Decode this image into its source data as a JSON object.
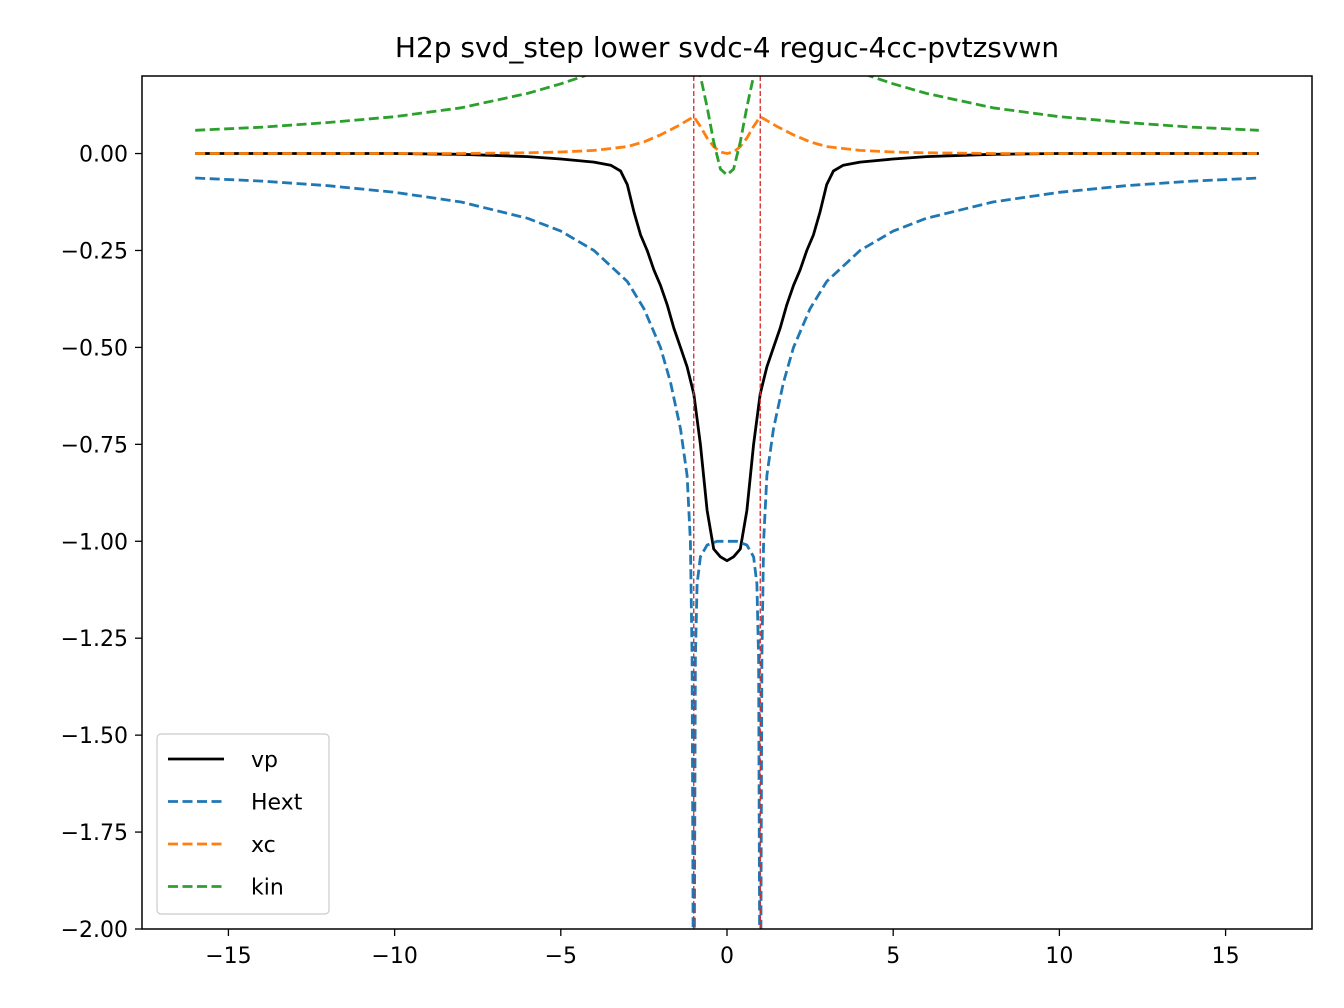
{
  "chart_data": {
    "type": "line",
    "title": "H2p svd_step lower svdc-4 reguc-4cc-pvtzsvwn",
    "xlabel": "",
    "ylabel": "",
    "xlim": [
      -17.6,
      17.6
    ],
    "ylim": [
      -2.0,
      0.2
    ],
    "x_ticks": [
      -15,
      -10,
      -5,
      0,
      5,
      10,
      15
    ],
    "x_tick_labels": [
      "−15",
      "−10",
      "−5",
      "0",
      "5",
      "10",
      "15"
    ],
    "y_ticks": [
      0.0,
      -0.25,
      -0.5,
      -0.75,
      -1.0,
      -1.25,
      -1.5,
      -1.75,
      -2.0
    ],
    "y_tick_labels": [
      "0.00",
      "−0.25",
      "−0.50",
      "−0.75",
      "−1.00",
      "−1.25",
      "−1.50",
      "−1.75",
      "−2.00"
    ],
    "grid": false,
    "legend_position": "lower-left",
    "vertical_lines": [
      {
        "x": -1.0,
        "color": "#d62728",
        "style": "dashed"
      },
      {
        "x": 1.0,
        "color": "#d62728",
        "style": "dashed"
      }
    ],
    "series": [
      {
        "name": "vp",
        "color": "#000000",
        "style": "solid",
        "x": [
          -16,
          -10,
          -8,
          -6,
          -5,
          -4,
          -3.5,
          -3.2,
          -3.0,
          -2.8,
          -2.6,
          -2.4,
          -2.2,
          -2.0,
          -1.8,
          -1.6,
          -1.4,
          -1.2,
          -1.0,
          -0.8,
          -0.6,
          -0.4,
          -0.2,
          0,
          0.2,
          0.4,
          0.6,
          0.8,
          1.0,
          1.2,
          1.4,
          1.6,
          1.8,
          2.0,
          2.2,
          2.4,
          2.6,
          2.8,
          3.0,
          3.2,
          3.5,
          4,
          5,
          6,
          8,
          10,
          16
        ],
        "values": [
          0.0,
          0.0,
          -0.002,
          -0.008,
          -0.014,
          -0.022,
          -0.03,
          -0.045,
          -0.08,
          -0.15,
          -0.21,
          -0.25,
          -0.3,
          -0.34,
          -0.39,
          -0.45,
          -0.5,
          -0.55,
          -0.62,
          -0.75,
          -0.92,
          -1.02,
          -1.04,
          -1.05,
          -1.04,
          -1.02,
          -0.92,
          -0.75,
          -0.62,
          -0.55,
          -0.5,
          -0.45,
          -0.39,
          -0.34,
          -0.3,
          -0.25,
          -0.21,
          -0.15,
          -0.08,
          -0.045,
          -0.03,
          -0.022,
          -0.014,
          -0.008,
          -0.002,
          0.0,
          0.0
        ]
      },
      {
        "name": "Hext",
        "color": "#1f77b4",
        "style": "dashed",
        "x": [
          -16,
          -14,
          -12,
          -10,
          -8,
          -6,
          -5,
          -4,
          -3,
          -2.5,
          -2,
          -1.7,
          -1.4,
          -1.2,
          -1.1,
          -1.05,
          -1.02,
          -0.98,
          -0.95,
          -0.9,
          -0.8,
          -0.6,
          -0.3,
          0,
          0.3,
          0.6,
          0.8,
          0.9,
          0.95,
          0.98,
          1.02,
          1.05,
          1.1,
          1.2,
          1.4,
          1.7,
          2,
          2.5,
          3,
          4,
          5,
          6,
          8,
          10,
          12,
          14,
          16
        ],
        "values": [
          -0.063,
          -0.071,
          -0.083,
          -0.1,
          -0.125,
          -0.167,
          -0.2,
          -0.25,
          -0.33,
          -0.4,
          -0.5,
          -0.59,
          -0.71,
          -0.83,
          -1.0,
          -1.3,
          -2.0,
          -2.0,
          -1.3,
          -1.11,
          -1.04,
          -1.01,
          -1.0,
          -1.0,
          -1.0,
          -1.01,
          -1.04,
          -1.11,
          -1.3,
          -2.0,
          -2.0,
          -1.3,
          -1.0,
          -0.83,
          -0.71,
          -0.59,
          -0.5,
          -0.4,
          -0.33,
          -0.25,
          -0.2,
          -0.167,
          -0.125,
          -0.1,
          -0.083,
          -0.071,
          -0.063
        ]
      },
      {
        "name": "xc",
        "color": "#ff7f0e",
        "style": "dashed",
        "x": [
          -16,
          -8,
          -6,
          -5,
          -4,
          -3,
          -2.5,
          -2,
          -1.5,
          -1.2,
          -1.0,
          -0.8,
          -0.6,
          -0.4,
          -0.2,
          0,
          0.2,
          0.4,
          0.6,
          0.8,
          1.0,
          1.2,
          1.5,
          2,
          2.5,
          3,
          4,
          5,
          6,
          8,
          16
        ],
        "values": [
          0.0,
          0.0,
          0.002,
          0.004,
          0.008,
          0.018,
          0.03,
          0.048,
          0.07,
          0.085,
          0.095,
          0.07,
          0.04,
          0.018,
          0.004,
          0.0,
          0.004,
          0.018,
          0.04,
          0.07,
          0.095,
          0.085,
          0.07,
          0.048,
          0.03,
          0.018,
          0.008,
          0.004,
          0.002,
          0.0,
          0.0
        ]
      },
      {
        "name": "kin",
        "color": "#2ca02c",
        "style": "dashed",
        "x": [
          -16,
          -14,
          -12,
          -10,
          -8,
          -6,
          -5,
          -4.3,
          -4,
          -3.5,
          -1.0,
          -0.8,
          -0.6,
          -0.4,
          -0.2,
          0,
          0.2,
          0.4,
          0.6,
          0.8,
          1.0,
          3.5,
          4,
          4.3,
          5,
          6,
          8,
          10,
          12,
          14,
          16
        ],
        "values": [
          0.06,
          0.068,
          0.08,
          0.095,
          0.118,
          0.155,
          0.18,
          0.2,
          0.21,
          0.25,
          0.25,
          0.2,
          0.12,
          0.03,
          -0.04,
          -0.055,
          -0.04,
          0.03,
          0.12,
          0.2,
          0.25,
          0.25,
          0.21,
          0.2,
          0.18,
          0.155,
          0.118,
          0.095,
          0.08,
          0.068,
          0.06
        ]
      }
    ]
  }
}
